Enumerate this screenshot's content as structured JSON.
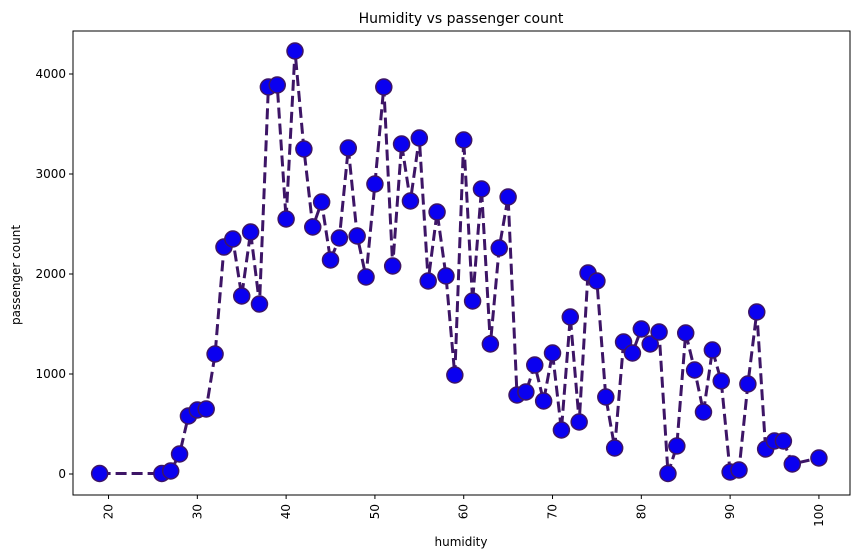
{
  "chart_data": {
    "type": "line",
    "title": "Humidity vs passenger count",
    "xlabel": "humidity",
    "ylabel": "passenger count",
    "xlim": [
      16,
      103.5
    ],
    "ylim": [
      -210,
      4430
    ],
    "xticks": [
      20,
      30,
      40,
      50,
      60,
      70,
      80,
      90,
      100
    ],
    "yticks": [
      0,
      1000,
      2000,
      3000,
      4000
    ],
    "grid": false,
    "line_color": "#3d1566",
    "marker_color": "#0a00f0",
    "marker_edge_color": "#3d1566",
    "series": [
      {
        "x": [
          19,
          26,
          27,
          28,
          29,
          30,
          31,
          32,
          33,
          34,
          35,
          36,
          37,
          38,
          39,
          40,
          41,
          42,
          43,
          44,
          45,
          46,
          47,
          48,
          49,
          50,
          51,
          52,
          53,
          54,
          55,
          56,
          57,
          58,
          59,
          60,
          61,
          62,
          63,
          64,
          65,
          66,
          67,
          68,
          69,
          70,
          71,
          72,
          73,
          74,
          75,
          76,
          77,
          78,
          79,
          80,
          81,
          82,
          83,
          84,
          85,
          86,
          87,
          88,
          89,
          90,
          91,
          92,
          93,
          94,
          95,
          96,
          97,
          100
        ],
        "y": [
          5,
          5,
          30,
          200,
          580,
          640,
          650,
          1200,
          2270,
          2350,
          1780,
          2420,
          1700,
          3870,
          3890,
          2550,
          4230,
          3250,
          2470,
          2720,
          2140,
          2360,
          3260,
          2380,
          1970,
          2900,
          3870,
          2080,
          3300,
          2730,
          3360,
          1930,
          2620,
          1980,
          990,
          3340,
          1730,
          2850,
          1300,
          2260,
          2770,
          790,
          820,
          1090,
          730,
          1210,
          440,
          1570,
          520,
          2010,
          1930,
          770,
          260,
          1320,
          1210,
          1450,
          1300,
          1420,
          5,
          280,
          1410,
          1040,
          620,
          1240,
          930,
          20,
          40,
          900,
          1620,
          250,
          330,
          330,
          100,
          160
        ]
      }
    ]
  }
}
